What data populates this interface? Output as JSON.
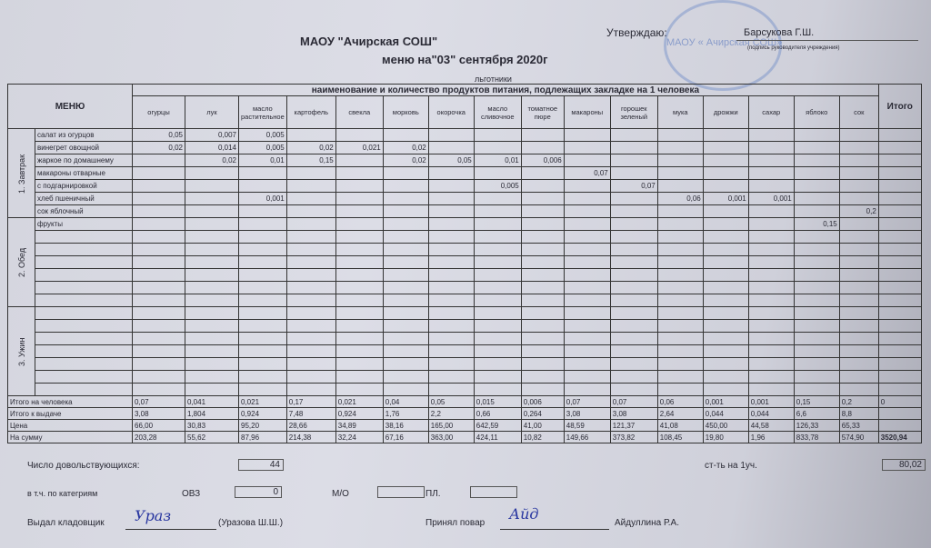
{
  "header": {
    "org": "МАОУ \"Ачирская СОШ\"",
    "menu_date": "меню на\"03\" сентября 2020г",
    "approve_label": "Утверждаю:",
    "director": "Барсукова Г.Ш.",
    "signature_caption": "(подпись руководителя учреждения)",
    "category": "льготники",
    "stamp_text": "МАОУ « Ачирская СОШ»"
  },
  "table": {
    "menu_header": "МЕНЮ",
    "products_header": "наименование и количество продуктов питания, подлежащих закладке на 1 человека",
    "total_header": "Итого",
    "products": [
      "огурцы",
      "лук",
      "масло растительное",
      "картофель",
      "свекла",
      "морковь",
      "окорочка",
      "масло сливочное",
      "томатное пюре",
      "макароны",
      "горошек зеленый",
      "мука",
      "дрожжи",
      "сахар",
      "яблоко",
      "сок"
    ],
    "sections": [
      {
        "name": "1. Завтрак",
        "rows": [
          {
            "dish": "салат из огурцов",
            "values": [
              "0,05",
              "0,007",
              "0,005",
              "",
              "",
              "",
              "",
              "",
              "",
              "",
              "",
              "",
              "",
              "",
              "",
              ""
            ]
          },
          {
            "dish": "винегрет овощной",
            "values": [
              "0,02",
              "0,014",
              "0,005",
              "0,02",
              "0,021",
              "0,02",
              "",
              "",
              "",
              "",
              "",
              "",
              "",
              "",
              "",
              ""
            ]
          },
          {
            "dish": "жаркое по домашнему",
            "values": [
              "",
              "0,02",
              "0,01",
              "0,15",
              "",
              "0,02",
              "0,05",
              "0,01",
              "0,006",
              "",
              "",
              "",
              "",
              "",
              "",
              ""
            ]
          },
          {
            "dish": "макароны отварные",
            "values": [
              "",
              "",
              "",
              "",
              "",
              "",
              "",
              "",
              "",
              "0,07",
              "",
              "",
              "",
              "",
              "",
              ""
            ]
          },
          {
            "dish": "с подгарнировкой",
            "values": [
              "",
              "",
              "",
              "",
              "",
              "",
              "",
              "0,005",
              "",
              "",
              "0,07",
              "",
              "",
              "",
              "",
              ""
            ]
          },
          {
            "dish": "хлеб пшеничный",
            "values": [
              "",
              "",
              "0,001",
              "",
              "",
              "",
              "",
              "",
              "",
              "",
              "",
              "0,06",
              "0,001",
              "0,001",
              "",
              ""
            ]
          },
          {
            "dish": "сок яблочный",
            "values": [
              "",
              "",
              "",
              "",
              "",
              "",
              "",
              "",
              "",
              "",
              "",
              "",
              "",
              "",
              "",
              "0,2"
            ]
          }
        ]
      },
      {
        "name": "2. Обед",
        "rows": [
          {
            "dish": "фрукты",
            "values": [
              "",
              "",
              "",
              "",
              "",
              "",
              "",
              "",
              "",
              "",
              "",
              "",
              "",
              "",
              "0,15",
              ""
            ]
          },
          {
            "dish": "",
            "values": []
          },
          {
            "dish": "",
            "values": []
          },
          {
            "dish": "",
            "values": []
          },
          {
            "dish": "",
            "values": []
          },
          {
            "dish": "",
            "values": []
          },
          {
            "dish": "",
            "values": []
          }
        ]
      },
      {
        "name": "3. Ужин",
        "rows": [
          {
            "dish": "",
            "values": []
          },
          {
            "dish": "",
            "values": []
          },
          {
            "dish": "",
            "values": []
          },
          {
            "dish": "",
            "values": []
          },
          {
            "dish": "",
            "values": []
          },
          {
            "dish": "",
            "values": []
          },
          {
            "dish": "",
            "values": []
          }
        ]
      }
    ],
    "totals": [
      {
        "label": "Итого на человека",
        "values": [
          "0,07",
          "0,041",
          "0,021",
          "0,17",
          "0,021",
          "0,04",
          "0,05",
          "0,015",
          "0,006",
          "0,07",
          "0,07",
          "0,06",
          "0,001",
          "0,001",
          "0,15",
          "0,2"
        ],
        "total": "0"
      },
      {
        "label": "Итого к выдаче",
        "values": [
          "3,08",
          "1,804",
          "0,924",
          "7,48",
          "0,924",
          "1,76",
          "2,2",
          "0,66",
          "0,264",
          "3,08",
          "3,08",
          "2,64",
          "0,044",
          "0,044",
          "6,6",
          "8,8"
        ],
        "total": ""
      },
      {
        "label": "Цена",
        "values": [
          "66,00",
          "30,83",
          "95,20",
          "28,66",
          "34,89",
          "38,16",
          "165,00",
          "642,59",
          "41,00",
          "48,59",
          "121,37",
          "41,08",
          "450,00",
          "44,58",
          "126,33",
          "65,33"
        ],
        "total": ""
      },
      {
        "label": "На сумму",
        "values": [
          "203,28",
          "55,62",
          "87,96",
          "214,38",
          "32,24",
          "67,16",
          "363,00",
          "424,11",
          "10,82",
          "149,66",
          "373,82",
          "108,45",
          "19,80",
          "1,96",
          "833,78",
          "574,90"
        ],
        "total": "3520,94"
      }
    ]
  },
  "footer": {
    "count_label": "Число довольствующихся:",
    "count": "44",
    "cost_label": "ст-ть на 1уч.",
    "cost": "80,02",
    "categories_label": "в т.ч. по категриям",
    "ovz_label": "ОВЗ",
    "ovz": "0",
    "mo_label": "М/О",
    "mo": "",
    "pl_label": "ПЛ.",
    "pl": "",
    "issued_label": "Выдал кладовщик",
    "issued_name": "(Уразова Ш.Ш.)",
    "issued_signature": "Урaз",
    "received_label": "Принял повар",
    "received_name": "Айдуллина Р.А.",
    "received_signature": "Айд"
  }
}
